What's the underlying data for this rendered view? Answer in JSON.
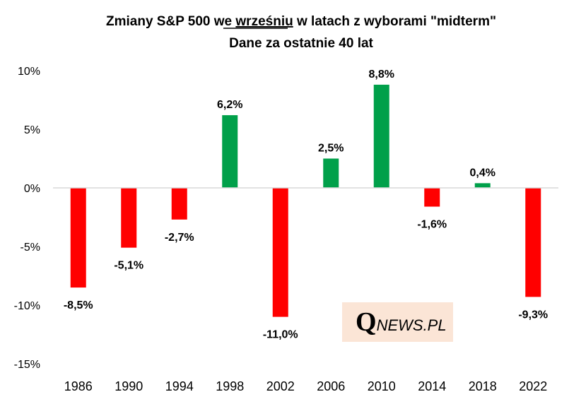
{
  "chart_data": {
    "type": "bar",
    "title_parts": [
      "Zmiany S&P 500 we ",
      "wrześniu",
      " w latach z wyborami \"midterm\""
    ],
    "subtitle": "Dane za ostatnie 40 lat",
    "categories": [
      "1986",
      "1990",
      "1994",
      "1998",
      "2002",
      "2006",
      "2010",
      "2014",
      "2018",
      "2022"
    ],
    "values": [
      -8.5,
      -5.1,
      -2.7,
      6.2,
      -11.0,
      2.5,
      8.8,
      -1.6,
      0.4,
      -9.3
    ],
    "data_labels": [
      "-8,5%",
      "-5,1%",
      "-2,7%",
      "6,2%",
      "-11,0%",
      "2,5%",
      "8,8%",
      "-1,6%",
      "0,4%",
      "-9,3%"
    ],
    "y_ticks": [
      10,
      5,
      0,
      -5,
      -10,
      -15
    ],
    "y_tick_labels": [
      "10%",
      "5%",
      "0%",
      "-5%",
      "-10%",
      "-15%"
    ],
    "ylim": [
      -15,
      10
    ],
    "grid": false,
    "colors": {
      "positive": "#00a04a",
      "negative": "#ff0000",
      "axis": "#d9d9d9"
    },
    "xlabel": "",
    "ylabel": ""
  },
  "logo": {
    "q": "Q",
    "rest": "NEWS.PL",
    "background": "#fbe5d6"
  }
}
